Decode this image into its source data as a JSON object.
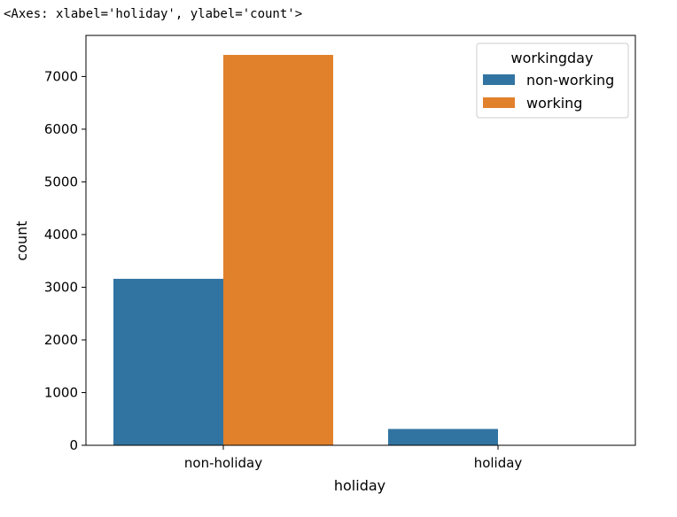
{
  "output_header": "<Axes: xlabel='holiday', ylabel='count'>",
  "chart_data": {
    "type": "bar",
    "title": "",
    "xlabel": "holiday",
    "ylabel": "count",
    "categories": [
      "non-holiday",
      "holiday"
    ],
    "series": [
      {
        "name": "non-working",
        "color": "#3274a1",
        "values": [
          3160,
          310
        ]
      },
      {
        "name": "working",
        "color": "#e1812c",
        "values": [
          7410,
          0
        ]
      }
    ],
    "yticks": [
      0,
      1000,
      2000,
      3000,
      4000,
      5000,
      6000,
      7000
    ],
    "ylim": [
      0,
      7780
    ],
    "grid": false,
    "legend": {
      "title": "workingday",
      "placement": "top-right"
    }
  }
}
